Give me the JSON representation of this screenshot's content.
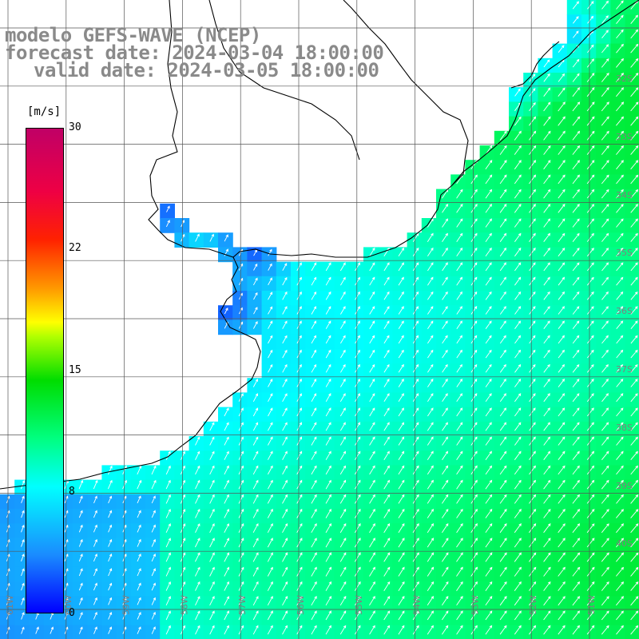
{
  "title": {
    "line1": "modelo GEFS-WAVE (NCEP)",
    "line2": "forecast date: 2024-03-04 18:00:00",
    "line3": "valid date: 2024-03-05 18:00:00"
  },
  "legend": {
    "unit": "[m/s]",
    "ticks": [
      "30",
      "22",
      "15",
      "8",
      "0"
    ],
    "tick_values": [
      30,
      22,
      15,
      8,
      0
    ],
    "min": 0,
    "max": 30
  },
  "axes": {
    "lat_labels": [
      "32S",
      "33S",
      "34S",
      "35S",
      "36S",
      "37S",
      "38S",
      "39S",
      "40S"
    ],
    "lon_labels": [
      "61W",
      "60W",
      "59W",
      "58W",
      "57W",
      "56W",
      "55W",
      "54W",
      "53W",
      "52W",
      "51W"
    ]
  },
  "colors": {
    "land": "#ffffff",
    "coast": "#000000",
    "grid": "#555555",
    "arrow": "#ffffff",
    "axis_label": "#7f7f7f"
  },
  "field": {
    "variable": "wind speed",
    "arrow_direction": "toward north-east"
  }
}
